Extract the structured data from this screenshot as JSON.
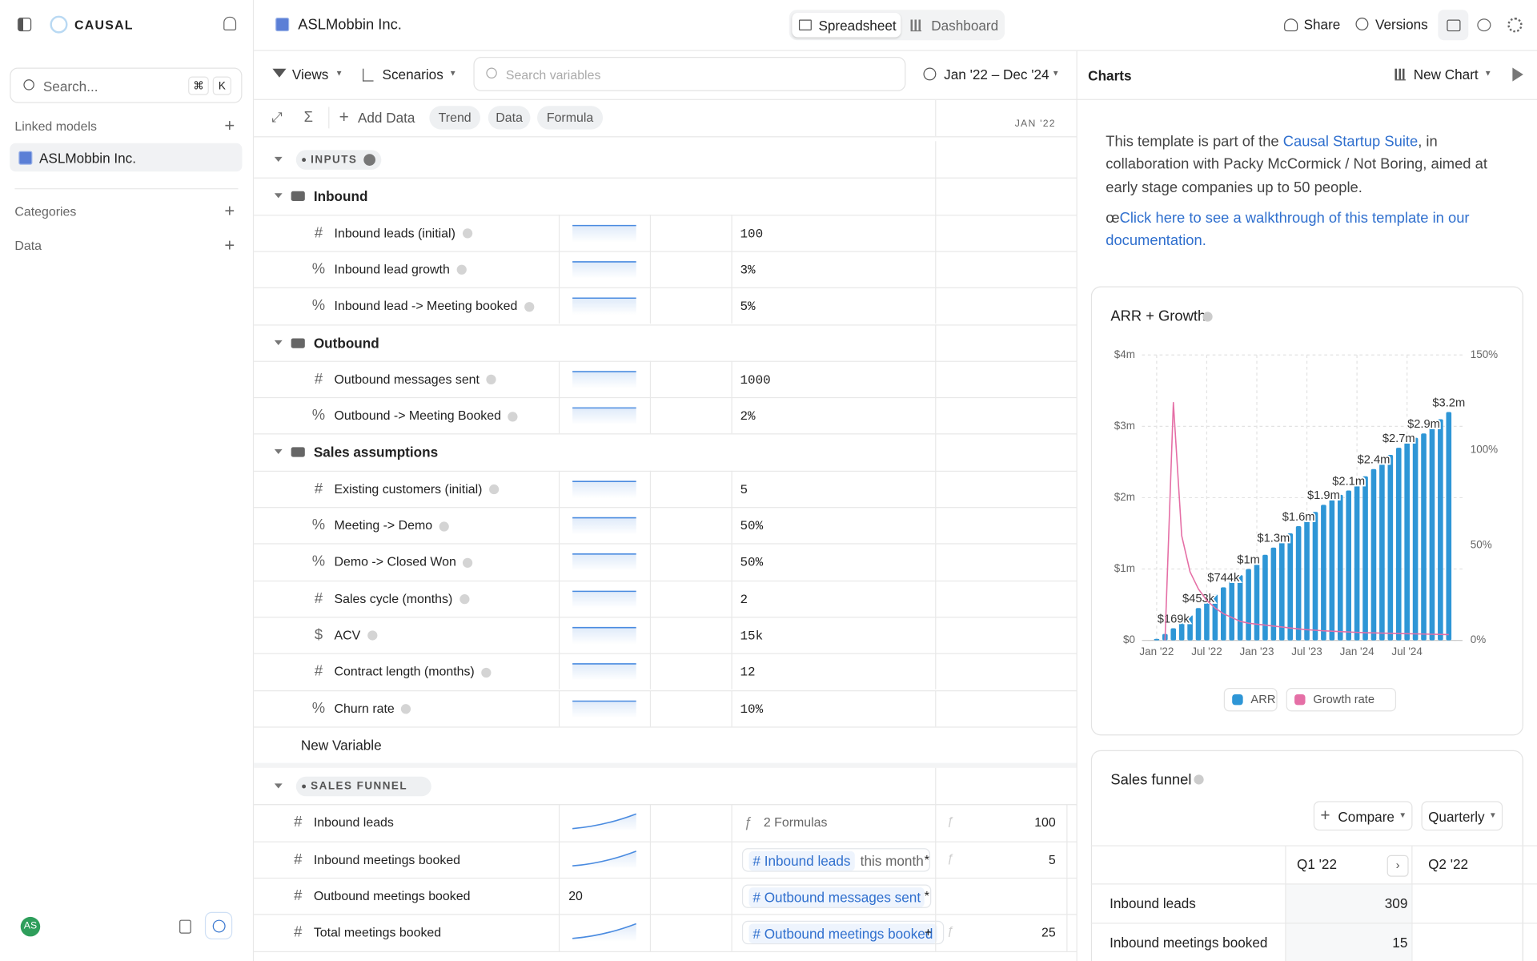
{
  "sidebar": {
    "brand": "CAUSAL",
    "search": "Search...",
    "shortcut": [
      "⌘",
      "K"
    ],
    "linked_models_label": "Linked models",
    "linked_model": "ASLMobbin Inc.",
    "categories_label": "Categories",
    "data_label": "Data",
    "avatar": "AS"
  },
  "topbar": {
    "model_name": "ASLMobbin Inc.",
    "tabs": [
      "Spreadsheet",
      "Dashboard"
    ],
    "actions": [
      "Share",
      "Versions"
    ]
  },
  "toolbar": {
    "views": "Views",
    "scenarios": "Scenarios",
    "search_placeholder": "Search variables",
    "date_range": "Jan '22 – Dec '24",
    "add_data": "Add Data",
    "modes": [
      "Trend",
      "Data",
      "Formula"
    ],
    "column_header": "JAN '22"
  },
  "sections": [
    {
      "title": "INPUTS",
      "groups": [
        {
          "name": "Inbound",
          "rows": [
            {
              "icon": "#",
              "name": "Inbound leads (initial)",
              "value": "100"
            },
            {
              "icon": "%",
              "name": "Inbound lead growth",
              "value": "3%"
            },
            {
              "icon": "%",
              "name": "Inbound lead -> Meeting booked",
              "value": "5%"
            }
          ]
        },
        {
          "name": "Outbound",
          "rows": [
            {
              "icon": "#",
              "name": "Outbound messages sent",
              "value": "1000"
            },
            {
              "icon": "%",
              "name": "Outbound -> Meeting Booked",
              "value": "2%"
            }
          ]
        },
        {
          "name": "Sales assumptions",
          "rows": [
            {
              "icon": "#",
              "name": "Existing customers (initial)",
              "value": "5"
            },
            {
              "icon": "%",
              "name": "Meeting -> Demo",
              "value": "50%"
            },
            {
              "icon": "%",
              "name": "Demo -> Closed Won",
              "value": "50%"
            },
            {
              "icon": "#",
              "name": "Sales cycle (months)",
              "value": "2"
            },
            {
              "icon": "$",
              "name": "ACV",
              "value": "15k"
            },
            {
              "icon": "#",
              "name": "Contract length (months)",
              "value": "12"
            },
            {
              "icon": "%",
              "name": "Churn rate",
              "value": "10%"
            }
          ]
        }
      ],
      "new_variable": "New Variable"
    },
    {
      "title": "SALES FUNNEL",
      "rows": [
        {
          "icon": "#",
          "name": "Inbound leads",
          "formula": "2 Formulas",
          "value": "100"
        },
        {
          "icon": "#",
          "name": "Inbound meetings booked",
          "formula_ref": "Inbound leads",
          "formula_suffix": "this month",
          "formula_op": "*",
          "value": "5"
        },
        {
          "icon": "#",
          "name": "Outbound meetings booked",
          "input": "20",
          "formula_ref": "Outbound messages sent",
          "formula_op": "*"
        },
        {
          "icon": "#",
          "name": "Total meetings booked",
          "formula_ref": "Outbound meetings booked",
          "formula_op": "+",
          "value": "25"
        }
      ]
    }
  ],
  "panel": {
    "title": "Charts",
    "new_chart": "New Chart",
    "intro_before": "This template is part of the ",
    "intro_link": "Causal Startup Suite",
    "intro_after": ", in collaboration with Packy McCormick / Not Boring, aimed at early stage companies up to 50 people.",
    "walkthrough_prefix": "œ",
    "walkthrough_link": "Click here to see a walkthrough of this template in our documentation."
  },
  "chart_data": {
    "type": "bar",
    "title": "ARR + Growth",
    "categories": [
      "Jan '22",
      null,
      null,
      null,
      null,
      null,
      "Jul '22",
      null,
      null,
      null,
      null,
      null,
      "Jan '23",
      null,
      null,
      null,
      null,
      null,
      "Jul '23",
      null,
      null,
      null,
      null,
      null,
      "Jan '24",
      null,
      null,
      null,
      null,
      null,
      "Jul '24",
      null,
      null,
      null,
      null,
      null
    ],
    "series": [
      {
        "name": "ARR",
        "color": "#2e96d6",
        "values": [
          20000,
          90000,
          169000,
          260000,
          355000,
          453000,
          550000,
          647000,
          744000,
          830000,
          915000,
          1000000,
          1100000,
          1200000,
          1300000,
          1400000,
          1500000,
          1600000,
          1700000,
          1800000,
          1900000,
          1970000,
          2040000,
          2100000,
          2200000,
          2300000,
          2400000,
          2500000,
          2600000,
          2700000,
          2770000,
          2840000,
          2900000,
          3000000,
          3100000,
          3200000
        ],
        "value_labels": [
          null,
          null,
          "$169k",
          null,
          null,
          "$453k",
          null,
          null,
          "$744k",
          null,
          null,
          "$1m",
          null,
          null,
          "$1.3m",
          null,
          null,
          "$1.6m",
          null,
          null,
          "$1.9m",
          null,
          null,
          "$2.1m",
          null,
          null,
          "$2.4m",
          null,
          null,
          "$2.7m",
          null,
          null,
          "$2.9m",
          null,
          null,
          "$3.2m"
        ]
      },
      {
        "name": "Growth rate",
        "color": "#e56fa6",
        "axis": "y2",
        "values": [
          null,
          0,
          125,
          55,
          36,
          27,
          21,
          17,
          14,
          12,
          10,
          9,
          8.5,
          8,
          7.5,
          7,
          6.5,
          6,
          5.6,
          5.3,
          5,
          4.8,
          4.6,
          4.4,
          4.2,
          4,
          3.9,
          3.8,
          3.7,
          3.6,
          3.5,
          3.4,
          3.3,
          3.2,
          3.1,
          3
        ]
      }
    ],
    "ylim": [
      0,
      4000000
    ],
    "yticks": [
      {
        "value": 0,
        "label": "$0"
      },
      {
        "value": 1000000,
        "label": "$1m"
      },
      {
        "value": 2000000,
        "label": "$2m"
      },
      {
        "value": 3000000,
        "label": "$3m"
      },
      {
        "value": 4000000,
        "label": "$4m"
      }
    ],
    "y2lim": [
      0,
      150
    ],
    "y2ticks": [
      {
        "value": 0,
        "label": "0%"
      },
      {
        "value": 50,
        "label": "50%"
      },
      {
        "value": 100,
        "label": "100%"
      },
      {
        "value": 150,
        "label": "150%"
      }
    ],
    "grid": true,
    "legend": "bottom"
  },
  "funnel": {
    "title": "Sales funnel",
    "compare": "Compare",
    "period": "Quarterly",
    "columns": [
      "Q1 '22",
      "Q2 '22"
    ],
    "rows": [
      {
        "name": "Inbound leads",
        "values": [
          "309"
        ]
      },
      {
        "name": "Inbound meetings booked",
        "values": [
          "15"
        ]
      }
    ]
  }
}
